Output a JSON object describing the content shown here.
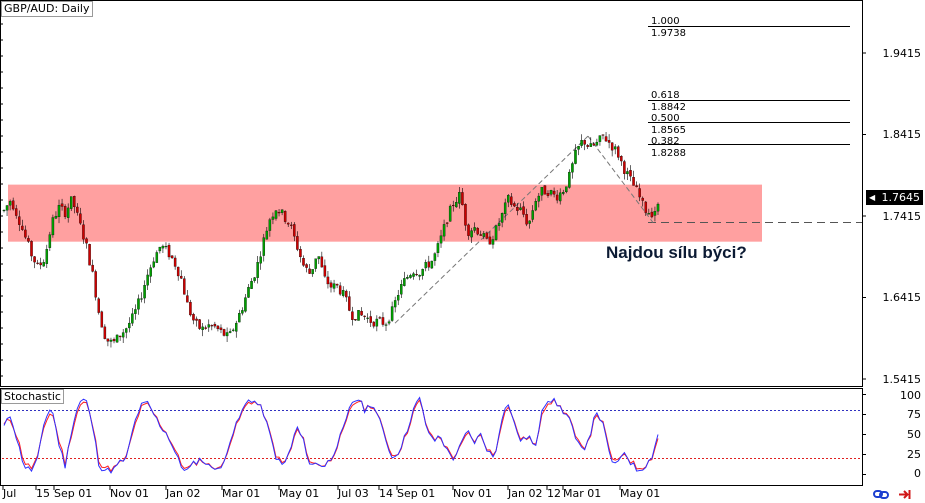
{
  "window": {
    "title": "GBP/AUD: Daily"
  },
  "indicator": {
    "title": "Stochastic"
  },
  "callout": {
    "text": "Najdou sílu býci?"
  },
  "current_price": "1.7645",
  "fib_levels": [
    {
      "ratio": "1.000",
      "price": "1.9738"
    },
    {
      "ratio": "0.618",
      "price": "1.8842"
    },
    {
      "ratio": "0.500",
      "price": "1.8565"
    },
    {
      "ratio": "0.382",
      "price": "1.8288"
    }
  ],
  "price_axis": [
    "1.9415",
    "1.8415",
    "1.7645",
    "1.7415",
    "1.6415",
    "1.5415"
  ],
  "stoch_axis": [
    "100",
    "75",
    "50",
    "25",
    "0"
  ],
  "time_axis": [
    "Jul",
    "15",
    "Sep 01",
    "Nov 01",
    "Jan 02",
    "Mar 01",
    "May 01",
    "Jul 03",
    "14",
    "Sep 01",
    "Nov 01",
    "Jan 02",
    "12",
    "Mar 01",
    "May 01"
  ],
  "colors": {
    "bull": "#00a000",
    "bear": "#cc0000",
    "zone": "#ffa0a0",
    "stoch_k": "#3030ff",
    "stoch_d": "#ff2020",
    "level_upper": "#3030c0",
    "level_lower": "#e02020"
  },
  "icons": [
    "chain-link-icon",
    "exit-arrow-icon"
  ],
  "chart_data": {
    "type": "candlestick",
    "title": "GBP/AUD: Daily",
    "y_range": [
      1.5415,
      1.9415
    ],
    "current": 1.7645,
    "resistance_zone": [
      1.71,
      1.78
    ],
    "support_dashed": 1.7335,
    "fibonacci": {
      "low": 1.61,
      "high": 1.8395,
      "levels": [
        {
          "ratio": 1.0,
          "price": 1.9738
        },
        {
          "ratio": 0.618,
          "price": 1.8842
        },
        {
          "ratio": 0.5,
          "price": 1.8565
        },
        {
          "ratio": 0.382,
          "price": 1.8288
        }
      ]
    },
    "price_path": [
      1.748,
      1.762,
      1.742,
      1.718,
      1.695,
      1.678,
      1.69,
      1.732,
      1.752,
      1.746,
      1.762,
      1.735,
      1.708,
      1.67,
      1.62,
      1.59,
      1.585,
      1.595,
      1.605,
      1.618,
      1.64,
      1.668,
      1.69,
      1.705,
      1.698,
      1.685,
      1.665,
      1.63,
      1.61,
      1.602,
      1.607,
      1.605,
      1.598,
      1.592,
      1.61,
      1.63,
      1.655,
      1.675,
      1.708,
      1.738,
      1.752,
      1.742,
      1.73,
      1.705,
      1.68,
      1.67,
      1.698,
      1.665,
      1.655,
      1.655,
      1.642,
      1.62,
      1.62,
      1.618,
      1.612,
      1.612,
      1.61,
      1.625,
      1.65,
      1.665,
      1.675,
      1.673,
      1.68,
      1.688,
      1.71,
      1.738,
      1.758,
      1.768,
      1.722,
      1.728,
      1.72,
      1.708,
      1.72,
      1.74,
      1.762,
      1.752,
      1.748,
      1.73,
      1.762,
      1.772,
      1.772,
      1.765,
      1.772,
      1.79,
      1.82,
      1.835,
      1.825,
      1.83,
      1.84,
      1.83,
      1.82,
      1.8,
      1.785,
      1.77,
      1.75,
      1.745,
      1.752
    ],
    "stochastic": {
      "range": [
        0,
        100
      ],
      "levels": [
        80,
        20
      ],
      "k": [
        60,
        75,
        40,
        10,
        5,
        20,
        70,
        85,
        40,
        10,
        60,
        90,
        95,
        60,
        10,
        5,
        5,
        15,
        20,
        60,
        85,
        90,
        75,
        60,
        50,
        30,
        10,
        5,
        15,
        20,
        10,
        10,
        5,
        40,
        60,
        80,
        95,
        90,
        80,
        50,
        20,
        10,
        30,
        60,
        40,
        10,
        15,
        10,
        20,
        40,
        60,
        90,
        95,
        80,
        90,
        70,
        45,
        20,
        30,
        50,
        80,
        95,
        60,
        40,
        50,
        30,
        20,
        35,
        55,
        40,
        50,
        30,
        20,
        70,
        90,
        60,
        40,
        50,
        30,
        85,
        95,
        90,
        80,
        70,
        40,
        30,
        50,
        80,
        60,
        20,
        10,
        30,
        15,
        5,
        10,
        20,
        50
      ],
      "d": [
        62,
        70,
        45,
        15,
        8,
        22,
        65,
        80,
        45,
        14,
        55,
        85,
        92,
        62,
        15,
        8,
        7,
        14,
        22,
        55,
        82,
        88,
        76,
        62,
        50,
        33,
        13,
        7,
        14,
        19,
        11,
        10,
        7,
        37,
        58,
        78,
        92,
        90,
        80,
        52,
        23,
        12,
        28,
        57,
        42,
        13,
        14,
        11,
        19,
        38,
        58,
        86,
        93,
        82,
        88,
        71,
        47,
        23,
        29,
        48,
        77,
        92,
        62,
        42,
        48,
        32,
        22,
        33,
        52,
        42,
        48,
        32,
        22,
        65,
        87,
        62,
        42,
        48,
        32,
        80,
        92,
        90,
        81,
        71,
        43,
        32,
        48,
        77,
        62,
        24,
        13,
        28,
        17,
        8,
        11,
        19,
        45
      ]
    }
  }
}
